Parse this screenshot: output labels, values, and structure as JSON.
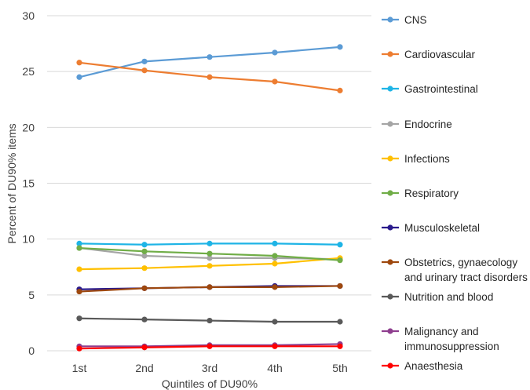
{
  "chart_data": {
    "type": "line",
    "title": "",
    "xlabel": "Quintiles of DU90%",
    "ylabel": "Percent of DU90% items",
    "categories": [
      "1st",
      "2nd",
      "3rd",
      "4th",
      "5th"
    ],
    "ylim": [
      0,
      30
    ],
    "yticks": [
      0,
      5,
      10,
      15,
      20,
      25,
      30
    ],
    "grid": "horizontal",
    "legend_position": "right",
    "series": [
      {
        "name": "CNS",
        "color": "#5B9BD5",
        "values": [
          24.5,
          25.9,
          26.3,
          26.7,
          27.2
        ]
      },
      {
        "name": "Cardiovascular",
        "color": "#ED7D31",
        "values": [
          25.8,
          25.1,
          24.5,
          24.1,
          23.3
        ]
      },
      {
        "name": "Gastrointestinal",
        "color": "#1EB4E6",
        "values": [
          9.6,
          9.5,
          9.6,
          9.6,
          9.5
        ]
      },
      {
        "name": "Endocrine",
        "color": "#A5A5A5",
        "values": [
          9.2,
          8.5,
          8.3,
          8.3,
          8.2
        ]
      },
      {
        "name": "Infections",
        "color": "#FFC000",
        "values": [
          7.3,
          7.4,
          7.6,
          7.8,
          8.3
        ]
      },
      {
        "name": "Respiratory",
        "color": "#70AD47",
        "values": [
          9.2,
          8.9,
          8.7,
          8.5,
          8.1
        ]
      },
      {
        "name": "Musculoskeletal",
        "color": "#2A1A8C",
        "values": [
          5.5,
          5.6,
          5.7,
          5.8,
          5.8
        ]
      },
      {
        "name": "Obstetrics, gynaecology and urinary tract disorders",
        "label_lines": [
          "Obstetrics, gynaecology",
          "and urinary tract disorders"
        ],
        "color": "#9E480E",
        "values": [
          5.3,
          5.6,
          5.7,
          5.7,
          5.8
        ]
      },
      {
        "name": "Nutrition and blood",
        "color": "#595959",
        "values": [
          2.9,
          2.8,
          2.7,
          2.6,
          2.6
        ]
      },
      {
        "name": "Malignancy and immunosuppression",
        "label_lines": [
          "Malignancy and",
          "immunosuppression"
        ],
        "color": "#8E3E8E",
        "values": [
          0.4,
          0.4,
          0.5,
          0.5,
          0.6
        ]
      },
      {
        "name": "Anaesthesia",
        "color": "#FF0000",
        "values": [
          0.2,
          0.3,
          0.4,
          0.4,
          0.4
        ]
      }
    ]
  }
}
